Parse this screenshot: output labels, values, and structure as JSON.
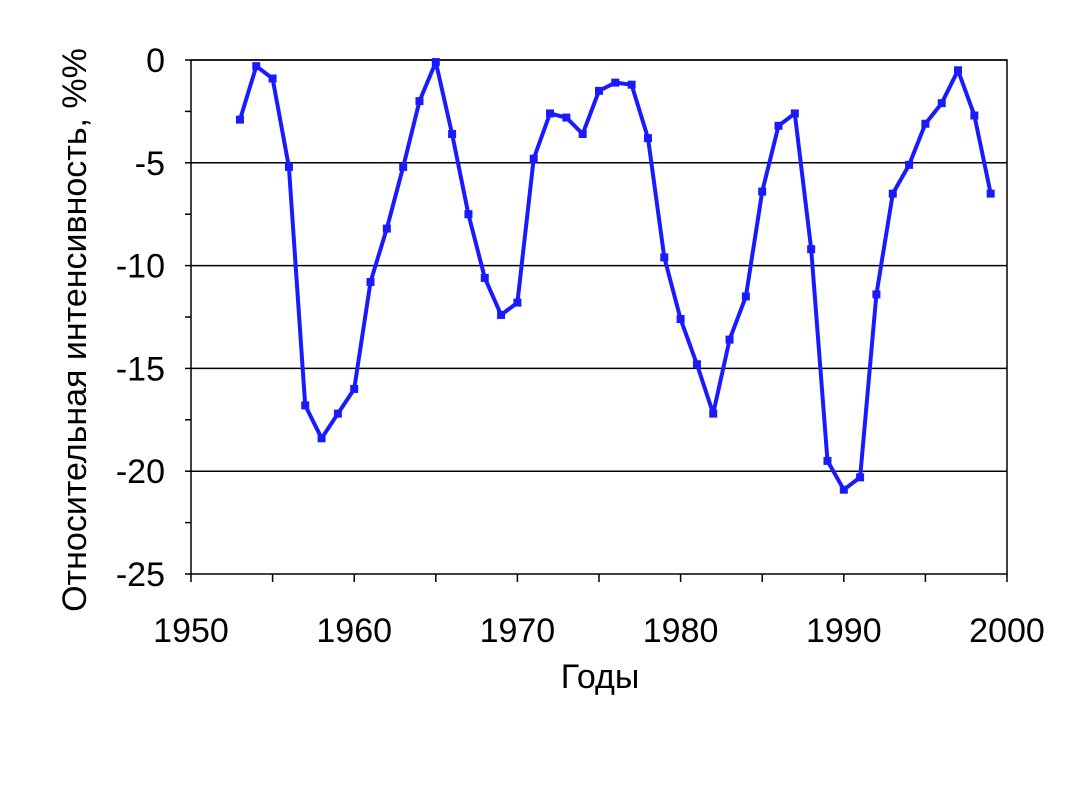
{
  "chart_data": {
    "type": "line",
    "title": "",
    "xlabel": "Годы",
    "ylabel": "Относительная интенсивность, %%",
    "xlim": [
      1950,
      2000
    ],
    "ylim": [
      -25,
      0
    ],
    "x_ticks": [
      1950,
      1960,
      1970,
      1980,
      1990,
      2000
    ],
    "x_tick_labels": [
      "1950",
      "1960",
      "1970",
      "1980",
      "1990",
      "2000"
    ],
    "y_ticks": [
      0,
      -5,
      -10,
      -15,
      -20,
      -25
    ],
    "y_tick_labels": [
      "0",
      "-5",
      "-10",
      "-15",
      "-20",
      "-25"
    ],
    "grid": "horizontal major lines",
    "legend": "none",
    "line_color": "#1a1aff",
    "series": [
      {
        "x": [
          1953,
          1954,
          1955,
          1956,
          1957,
          1958,
          1959,
          1960,
          1961,
          1962,
          1963,
          1964,
          1965,
          1966,
          1967,
          1968,
          1969,
          1970,
          1971,
          1972,
          1973,
          1974,
          1975,
          1976,
          1977,
          1978,
          1979,
          1980,
          1981,
          1982,
          1983,
          1984,
          1985,
          1986,
          1987,
          1988,
          1989,
          1990,
          1991,
          1992,
          1993,
          1994,
          1995,
          1996,
          1997,
          1998,
          1999
        ],
        "values": [
          -2.9,
          -0.3,
          -0.9,
          -5.2,
          -16.8,
          -18.4,
          -17.2,
          -16.0,
          -10.8,
          -8.2,
          -5.2,
          -2.0,
          -0.1,
          -3.6,
          -7.5,
          -10.6,
          -12.4,
          -11.8,
          -4.8,
          -2.6,
          -2.8,
          -3.6,
          -1.5,
          -1.1,
          -1.2,
          -3.8,
          -9.6,
          -12.6,
          -14.8,
          -17.2,
          -13.6,
          -11.5,
          -6.4,
          -3.2,
          -2.6,
          -9.2,
          -19.5,
          -20.9,
          -20.3,
          -11.4,
          -6.5,
          -5.1,
          -3.1,
          -2.1,
          -0.5,
          -2.7,
          -6.5
        ]
      }
    ]
  }
}
